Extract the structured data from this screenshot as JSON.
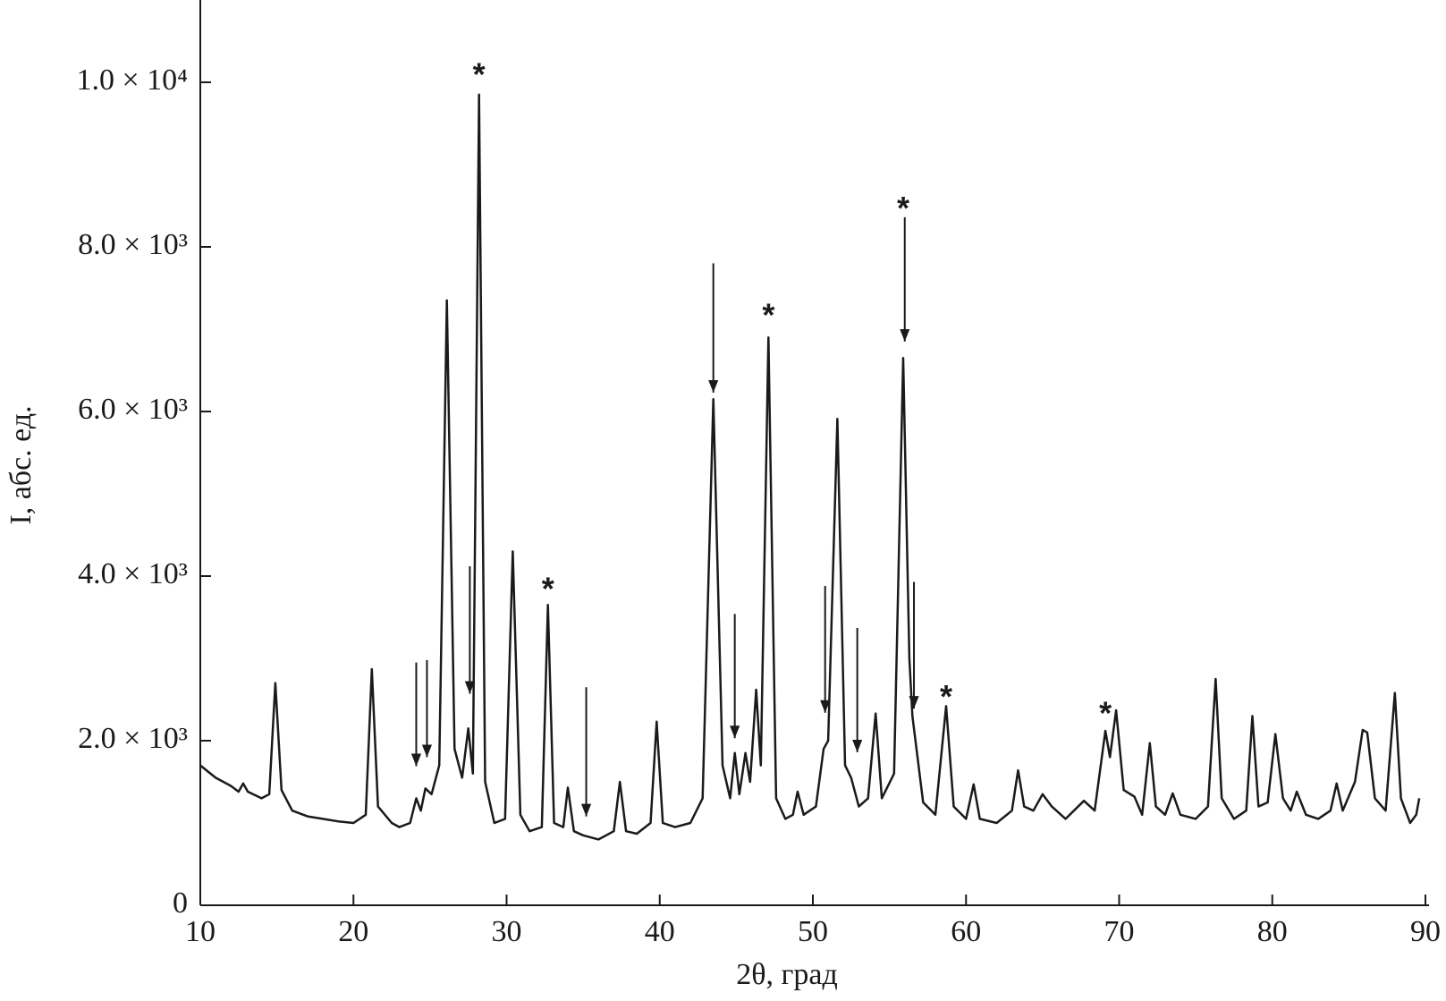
{
  "chart_data": {
    "type": "line",
    "xlabel": "2θ, град",
    "ylabel": "I, абс. ед.",
    "color": "#1a1a1a",
    "xlim": [
      10,
      90
    ],
    "ylim": [
      0,
      11000
    ],
    "xticks": [
      10,
      20,
      30,
      40,
      50,
      60,
      70,
      80,
      90
    ],
    "yticks": [
      0,
      {
        "value": 2000,
        "label": "2.0 × 10³"
      },
      {
        "value": 4000,
        "label": "4.0 × 10³"
      },
      {
        "value": 6000,
        "label": "6.0 × 10³"
      },
      {
        "value": 8000,
        "label": "8.0 × 10³"
      },
      {
        "value": 10000,
        "label": "1.0 × 10⁴"
      }
    ],
    "x": [
      10,
      11,
      12,
      12.5,
      12.8,
      13.1,
      14,
      14.5,
      14.9,
      15.3,
      16,
      17,
      18,
      19,
      20,
      20.8,
      21.2,
      21.6,
      22.5,
      23,
      23.7,
      24.1,
      24.4,
      24.7,
      25.1,
      25.6,
      26.1,
      26.6,
      27.1,
      27.5,
      27.8,
      28.2,
      28.6,
      29.2,
      29.9,
      30.4,
      30.9,
      31.5,
      32.3,
      32.7,
      33.1,
      33.7,
      34.0,
      34.4,
      35,
      36,
      37,
      37.4,
      37.8,
      38.5,
      39.4,
      39.8,
      40.2,
      41,
      42,
      42.8,
      43.5,
      44.1,
      44.6,
      44.9,
      45.2,
      45.6,
      45.9,
      46.3,
      46.6,
      47.1,
      47.6,
      48.2,
      48.7,
      49.0,
      49.4,
      50.2,
      50.7,
      51.0,
      51.6,
      52.1,
      52.5,
      53,
      53.6,
      54.1,
      54.5,
      55.3,
      55.9,
      56.3,
      56.5,
      57.2,
      58,
      58.7,
      59.2,
      60,
      60.5,
      60.9,
      62,
      63,
      63.4,
      63.8,
      64.4,
      65,
      65.6,
      66.5,
      67.7,
      68.4,
      69.1,
      69.4,
      69.8,
      70.3,
      71.0,
      71.5,
      72.0,
      72.4,
      73,
      73.5,
      74,
      75,
      75.8,
      76.3,
      76.7,
      77.5,
      78.3,
      78.7,
      79.1,
      79.7,
      80.2,
      80.7,
      81.2,
      81.6,
      82.2,
      83,
      83.8,
      84.2,
      84.6,
      85.4,
      85.9,
      86.2,
      86.7,
      87.4,
      88.0,
      88.4,
      89,
      89.4,
      89.6
    ],
    "values": [
      1700,
      1550,
      1450,
      1380,
      1480,
      1380,
      1300,
      1350,
      2700,
      1400,
      1150,
      1080,
      1050,
      1020,
      1000,
      1100,
      2870,
      1200,
      1000,
      950,
      1000,
      1300,
      1150,
      1420,
      1350,
      1700,
      7350,
      1900,
      1550,
      2150,
      1600,
      9850,
      1500,
      1000,
      1050,
      4300,
      1100,
      900,
      950,
      3650,
      1000,
      950,
      1430,
      900,
      850,
      800,
      900,
      1500,
      900,
      870,
      1000,
      2230,
      1000,
      950,
      1000,
      1300,
      6150,
      1700,
      1300,
      1850,
      1350,
      1850,
      1500,
      2620,
      1700,
      6900,
      1300,
      1050,
      1100,
      1380,
      1100,
      1200,
      1900,
      2000,
      5910,
      1700,
      1550,
      1200,
      1300,
      2330,
      1300,
      1600,
      6650,
      3000,
      2300,
      1250,
      1100,
      2420,
      1200,
      1050,
      1470,
      1050,
      1000,
      1150,
      1640,
      1200,
      1150,
      1350,
      1200,
      1050,
      1270,
      1150,
      2120,
      1800,
      2370,
      1400,
      1320,
      1100,
      1970,
      1200,
      1100,
      1360,
      1100,
      1050,
      1200,
      2750,
      1300,
      1050,
      1150,
      2300,
      1200,
      1250,
      2080,
      1300,
      1150,
      1380,
      1100,
      1050,
      1150,
      1480,
      1150,
      1500,
      2130,
      2100,
      1300,
      1150,
      2580,
      1300,
      1000,
      1100,
      1300
    ],
    "annotations": [
      {
        "text": "*",
        "x": 28.2,
        "y": 10150
      },
      {
        "text": "*",
        "x": 32.7,
        "y": 3900
      },
      {
        "text": "*",
        "x": 47.1,
        "y": 7230
      },
      {
        "text": "*",
        "x": 55.9,
        "y": 8530
      },
      {
        "text": "*",
        "x": 58.7,
        "y": 2590
      },
      {
        "text": "*",
        "x": 69.1,
        "y": 2390
      }
    ],
    "arrows": [
      {
        "x": 43.5,
        "y_start": 7800,
        "y_end": 6230
      },
      {
        "x": 56.0,
        "y_start": 8360,
        "y_end": 6850
      },
      {
        "x": 27.6,
        "y_start": 4120,
        "y_end": 2570
      },
      {
        "x": 24.1,
        "y_start": 2950,
        "y_end": 1690
      },
      {
        "x": 24.8,
        "y_start": 2980,
        "y_end": 1800
      },
      {
        "x": 35.2,
        "y_start": 2650,
        "y_end": 1080
      },
      {
        "x": 44.9,
        "y_start": 3540,
        "y_end": 2030
      },
      {
        "x": 50.8,
        "y_start": 3880,
        "y_end": 2340
      },
      {
        "x": 52.9,
        "y_start": 3370,
        "y_end": 1860
      },
      {
        "x": 56.6,
        "y_start": 3930,
        "y_end": 2390
      }
    ]
  }
}
